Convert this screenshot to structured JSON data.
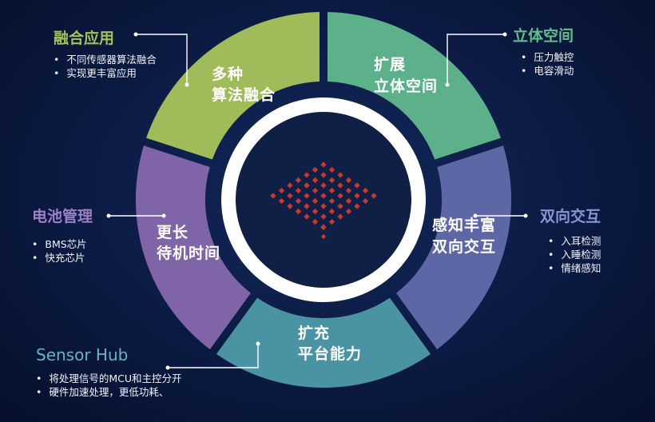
{
  "segments": [
    {
      "id": "fusion",
      "line1": "多种",
      "line2": "算法融合",
      "color": "#a0bb5a"
    },
    {
      "id": "space",
      "line1": "扩展",
      "line2": "立体空间",
      "color": "#5cb18b"
    },
    {
      "id": "sense",
      "line1": "感知丰富",
      "line2": "双向交互",
      "color": "#5e67a6"
    },
    {
      "id": "platform",
      "line1": "扩充",
      "line2": "平台能力",
      "color": "#4a93a2"
    },
    {
      "id": "battery",
      "line1": "更长",
      "line2": "待机时间",
      "color": "#7f64a7"
    }
  ],
  "annotations": {
    "fusion": {
      "title": "融合应用",
      "color": "#a6c158",
      "bullets": [
        "不同传感器算法融合",
        "实现更丰富应用"
      ]
    },
    "space": {
      "title": "立体空间",
      "color": "#62bc8f",
      "bullets": [
        "压力触控",
        "电容滑动"
      ]
    },
    "sense": {
      "title": "双向交互",
      "color": "#8d92d2",
      "bullets": [
        "入耳检测",
        "入睡检测",
        "情绪感知"
      ]
    },
    "battery": {
      "title": "电池管理",
      "color": "#9b80c8",
      "bullets": [
        "BMS芯片",
        "快充芯片"
      ]
    },
    "platform": {
      "title": "Sensor Hub",
      "color": "#6bb2c4",
      "bullets": [
        "将处理信号的MCU和主控分开",
        "硬件加速处理，更低功耗、"
      ]
    }
  },
  "colors": {
    "ring_inner": "#ffffff",
    "core": "#0f1f45",
    "dots": "#c8392b",
    "connector": "#ffffff"
  }
}
